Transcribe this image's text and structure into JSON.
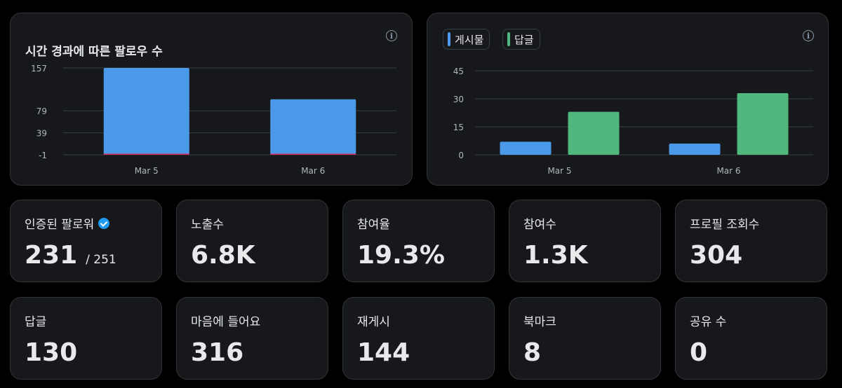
{
  "followers_chart": {
    "title": "시간 경과에 따른 팔로우 수",
    "chart_data": {
      "type": "bar",
      "categories": [
        "Mar 5",
        "Mar 6"
      ],
      "series": [
        {
          "values": [
            157,
            100
          ]
        }
      ],
      "y_ticks": [
        "157",
        "79",
        "39",
        "-1"
      ],
      "ylim": [
        -1,
        157
      ],
      "grid": true,
      "colors": {
        "bar": "#4a9ae9",
        "baseline": "#e0245e"
      }
    }
  },
  "posts_chart": {
    "legend": [
      {
        "label": "게시물",
        "color": "#4a9ae9"
      },
      {
        "label": "답글",
        "color": "#50b87d"
      }
    ],
    "chart_data": {
      "type": "bar",
      "categories": [
        "Mar 5",
        "Mar 6"
      ],
      "series": [
        {
          "name": "게시물",
          "values": [
            7,
            6
          ],
          "color": "#4a9ae9"
        },
        {
          "name": "답글",
          "values": [
            23,
            33
          ],
          "color": "#50b87d"
        }
      ],
      "y_ticks": [
        "45",
        "30",
        "15",
        "0"
      ],
      "ylim": [
        0,
        45
      ],
      "grid": true
    }
  },
  "stats": [
    {
      "label": "인증된 팔로워",
      "value": "231",
      "sub": "/ 251",
      "verified": true
    },
    {
      "label": "노출수",
      "value": "6.8K"
    },
    {
      "label": "참여율",
      "value": "19.3%"
    },
    {
      "label": "참여수",
      "value": "1.3K"
    },
    {
      "label": "프로필 조회수",
      "value": "304"
    },
    {
      "label": "답글",
      "value": "130"
    },
    {
      "label": "마음에 들어요",
      "value": "316"
    },
    {
      "label": "재게시",
      "value": "144"
    },
    {
      "label": "북마크",
      "value": "8"
    },
    {
      "label": "공유 수",
      "value": "0"
    }
  ],
  "info_icon_glyph": "i"
}
